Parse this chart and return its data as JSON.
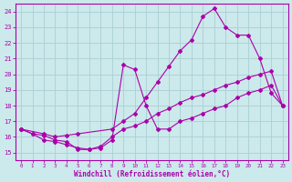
{
  "xlabel": "Windchill (Refroidissement éolien,°C)",
  "xlim": [
    -0.5,
    23.5
  ],
  "ylim": [
    14.5,
    24.5
  ],
  "xticks": [
    0,
    1,
    2,
    3,
    4,
    5,
    6,
    7,
    8,
    9,
    10,
    11,
    12,
    13,
    14,
    15,
    16,
    17,
    18,
    19,
    20,
    21,
    22,
    23
  ],
  "yticks": [
    15,
    16,
    17,
    18,
    19,
    20,
    21,
    22,
    23,
    24
  ],
  "bg_color": "#cce9eb",
  "line_color": "#aa00aa",
  "grid_color": "#aacfd4",
  "curve1_x": [
    0,
    1,
    2,
    3,
    4,
    5,
    6,
    7,
    8,
    9,
    10,
    11,
    12,
    13,
    14,
    15,
    16,
    17,
    18,
    19,
    20,
    21,
    22,
    23
  ],
  "curve1_y": [
    16.5,
    16.2,
    15.8,
    15.7,
    15.5,
    15.3,
    15.2,
    15.4,
    16.0,
    16.5,
    16.7,
    17.0,
    17.5,
    17.8,
    18.2,
    18.5,
    18.7,
    19.0,
    19.3,
    19.5,
    19.8,
    20.0,
    20.2,
    18.0
  ],
  "curve2_x": [
    0,
    1,
    2,
    3,
    4,
    5,
    6,
    7,
    8,
    9,
    10,
    11,
    12,
    13,
    14,
    15,
    16,
    17,
    18,
    19,
    20,
    21,
    22,
    23
  ],
  "curve2_y": [
    16.5,
    16.2,
    16.1,
    15.8,
    15.7,
    15.2,
    15.2,
    15.3,
    15.8,
    20.6,
    20.3,
    18.0,
    16.5,
    16.5,
    17.0,
    17.2,
    17.5,
    17.8,
    18.0,
    18.5,
    18.8,
    19.0,
    19.3,
    18.0
  ],
  "curve3_x": [
    0,
    2,
    3,
    4,
    5,
    8,
    9,
    10,
    11,
    12,
    13,
    14,
    15,
    16,
    17,
    18,
    19,
    20,
    21,
    22,
    23
  ],
  "curve3_y": [
    16.5,
    16.2,
    16.0,
    16.1,
    16.2,
    16.5,
    17.0,
    17.5,
    18.5,
    19.5,
    20.5,
    21.5,
    22.2,
    23.7,
    24.2,
    23.0,
    22.5,
    22.5,
    21.0,
    18.8,
    18.0
  ]
}
